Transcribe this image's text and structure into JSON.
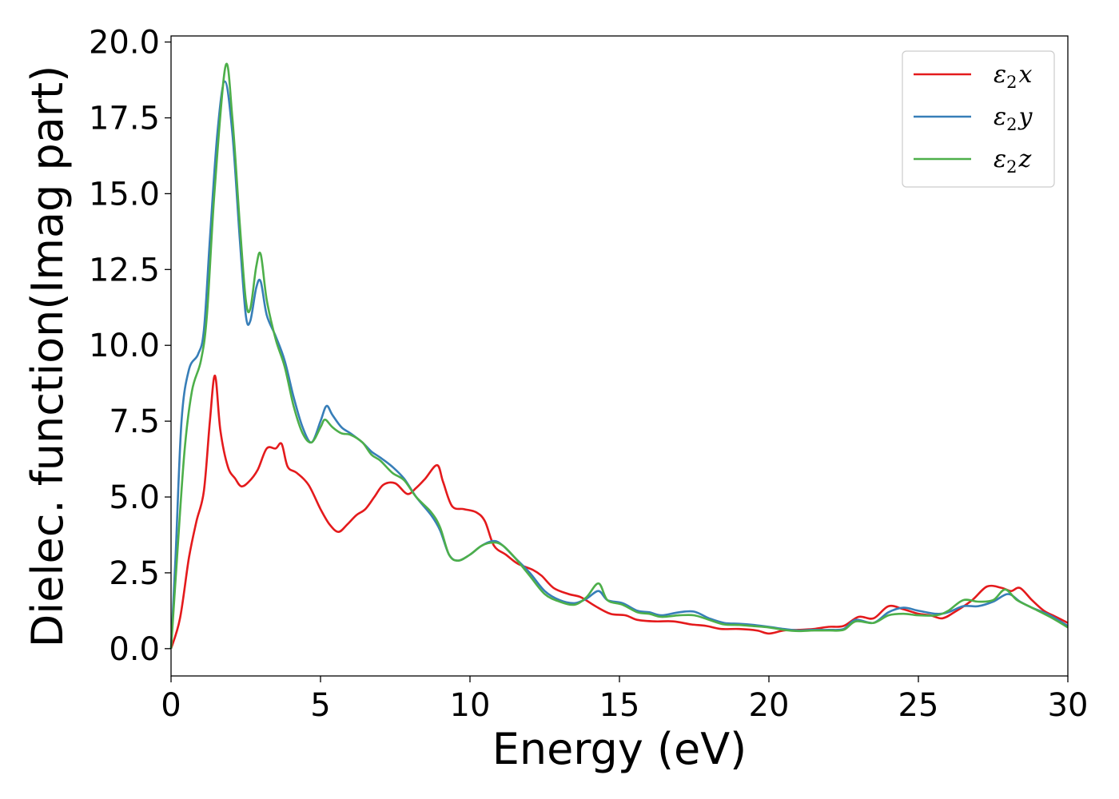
{
  "chart_data": {
    "type": "line",
    "title": "",
    "xlabel": "Energy (eV)",
    "ylabel": "Dielec. function(Imag part)",
    "xlim": [
      0,
      30
    ],
    "ylim": [
      -0.9,
      20.2
    ],
    "xticks": [
      0,
      5,
      10,
      15,
      20,
      25,
      30
    ],
    "yticks": [
      0.0,
      2.5,
      5.0,
      7.5,
      10.0,
      12.5,
      15.0,
      17.5,
      20.0
    ],
    "xtick_labels": [
      "0",
      "5",
      "10",
      "15",
      "20",
      "25",
      "30"
    ],
    "ytick_labels": [
      "0.0",
      "2.5",
      "5.0",
      "7.5",
      "10.0",
      "12.5",
      "15.0",
      "17.5",
      "20.0"
    ],
    "grid": false,
    "legend_position": "top-right",
    "series": [
      {
        "name": "ε₂x",
        "legend_base": "ε",
        "legend_sub": "2",
        "legend_var": "x",
        "color": "#e41a1c",
        "points": [
          [
            0,
            0
          ],
          [
            0.3,
            1.0
          ],
          [
            0.6,
            3.0
          ],
          [
            0.85,
            4.2
          ],
          [
            1.1,
            5.2
          ],
          [
            1.3,
            7.5
          ],
          [
            1.47,
            9.0
          ],
          [
            1.65,
            7.2
          ],
          [
            1.9,
            6.0
          ],
          [
            2.15,
            5.6
          ],
          [
            2.35,
            5.35
          ],
          [
            2.6,
            5.5
          ],
          [
            2.9,
            5.9
          ],
          [
            3.2,
            6.6
          ],
          [
            3.5,
            6.6
          ],
          [
            3.7,
            6.75
          ],
          [
            3.9,
            6.0
          ],
          [
            4.2,
            5.8
          ],
          [
            4.6,
            5.4
          ],
          [
            5.0,
            4.6
          ],
          [
            5.3,
            4.1
          ],
          [
            5.6,
            3.85
          ],
          [
            5.9,
            4.1
          ],
          [
            6.2,
            4.4
          ],
          [
            6.5,
            4.6
          ],
          [
            6.8,
            5.0
          ],
          [
            7.1,
            5.4
          ],
          [
            7.5,
            5.45
          ],
          [
            7.9,
            5.1
          ],
          [
            8.2,
            5.3
          ],
          [
            8.5,
            5.6
          ],
          [
            8.9,
            6.05
          ],
          [
            9.1,
            5.5
          ],
          [
            9.4,
            4.7
          ],
          [
            9.8,
            4.6
          ],
          [
            10.2,
            4.5
          ],
          [
            10.5,
            4.2
          ],
          [
            10.8,
            3.4
          ],
          [
            11.2,
            3.1
          ],
          [
            11.6,
            2.8
          ],
          [
            12.1,
            2.6
          ],
          [
            12.4,
            2.4
          ],
          [
            12.8,
            2.0
          ],
          [
            13.3,
            1.8
          ],
          [
            13.7,
            1.7
          ],
          [
            14.2,
            1.4
          ],
          [
            14.7,
            1.15
          ],
          [
            15.2,
            1.1
          ],
          [
            15.6,
            0.95
          ],
          [
            16.2,
            0.9
          ],
          [
            16.8,
            0.9
          ],
          [
            17.4,
            0.8
          ],
          [
            17.9,
            0.75
          ],
          [
            18.4,
            0.65
          ],
          [
            19.0,
            0.65
          ],
          [
            19.6,
            0.6
          ],
          [
            20.0,
            0.5
          ],
          [
            20.5,
            0.6
          ],
          [
            21.0,
            0.62
          ],
          [
            21.5,
            0.65
          ],
          [
            22.0,
            0.72
          ],
          [
            22.5,
            0.75
          ],
          [
            23.0,
            1.05
          ],
          [
            23.5,
            1.0
          ],
          [
            24.0,
            1.4
          ],
          [
            24.5,
            1.3
          ],
          [
            25.0,
            1.15
          ],
          [
            25.4,
            1.1
          ],
          [
            25.8,
            1.0
          ],
          [
            26.2,
            1.2
          ],
          [
            26.8,
            1.6
          ],
          [
            27.3,
            2.05
          ],
          [
            27.8,
            2.0
          ],
          [
            28.1,
            1.9
          ],
          [
            28.4,
            2.0
          ],
          [
            28.8,
            1.6
          ],
          [
            29.2,
            1.25
          ],
          [
            29.6,
            1.05
          ],
          [
            30,
            0.85
          ]
        ]
      },
      {
        "name": "ε₂y",
        "legend_base": "ε",
        "legend_sub": "2",
        "legend_var": "y",
        "color": "#377eb8",
        "points": [
          [
            0,
            0
          ],
          [
            0.15,
            3.0
          ],
          [
            0.35,
            7.5
          ],
          [
            0.6,
            9.2
          ],
          [
            0.9,
            9.7
          ],
          [
            1.1,
            10.5
          ],
          [
            1.3,
            13.5
          ],
          [
            1.55,
            17.0
          ],
          [
            1.8,
            18.7
          ],
          [
            2.05,
            17.0
          ],
          [
            2.3,
            13.5
          ],
          [
            2.5,
            11.0
          ],
          [
            2.65,
            10.8
          ],
          [
            2.85,
            11.9
          ],
          [
            3.0,
            12.1
          ],
          [
            3.2,
            11.0
          ],
          [
            3.5,
            10.3
          ],
          [
            3.8,
            9.5
          ],
          [
            4.1,
            8.3
          ],
          [
            4.4,
            7.3
          ],
          [
            4.7,
            6.8
          ],
          [
            5.0,
            7.5
          ],
          [
            5.2,
            8.0
          ],
          [
            5.4,
            7.7
          ],
          [
            5.7,
            7.3
          ],
          [
            6.0,
            7.1
          ],
          [
            6.4,
            6.8
          ],
          [
            6.7,
            6.5
          ],
          [
            7.0,
            6.3
          ],
          [
            7.4,
            6.0
          ],
          [
            7.8,
            5.6
          ],
          [
            8.2,
            5.0
          ],
          [
            8.7,
            4.4
          ],
          [
            9.0,
            3.9
          ],
          [
            9.3,
            3.1
          ],
          [
            9.6,
            2.9
          ],
          [
            10.0,
            3.1
          ],
          [
            10.4,
            3.4
          ],
          [
            10.8,
            3.55
          ],
          [
            11.1,
            3.4
          ],
          [
            11.5,
            3.0
          ],
          [
            12.0,
            2.5
          ],
          [
            12.5,
            1.9
          ],
          [
            13.0,
            1.6
          ],
          [
            13.5,
            1.5
          ],
          [
            13.9,
            1.65
          ],
          [
            14.3,
            1.9
          ],
          [
            14.6,
            1.6
          ],
          [
            15.1,
            1.5
          ],
          [
            15.6,
            1.25
          ],
          [
            16.0,
            1.2
          ],
          [
            16.4,
            1.1
          ],
          [
            17.0,
            1.2
          ],
          [
            17.5,
            1.22
          ],
          [
            18.0,
            1.0
          ],
          [
            18.5,
            0.85
          ],
          [
            19.0,
            0.82
          ],
          [
            19.5,
            0.78
          ],
          [
            20.0,
            0.72
          ],
          [
            20.5,
            0.65
          ],
          [
            21.0,
            0.6
          ],
          [
            21.5,
            0.62
          ],
          [
            22.0,
            0.62
          ],
          [
            22.5,
            0.65
          ],
          [
            22.9,
            0.95
          ],
          [
            23.5,
            0.85
          ],
          [
            24.0,
            1.2
          ],
          [
            24.5,
            1.35
          ],
          [
            25.0,
            1.25
          ],
          [
            25.6,
            1.15
          ],
          [
            26.0,
            1.2
          ],
          [
            26.5,
            1.4
          ],
          [
            27.0,
            1.4
          ],
          [
            27.5,
            1.55
          ],
          [
            28.0,
            1.8
          ],
          [
            28.4,
            1.55
          ],
          [
            28.8,
            1.35
          ],
          [
            29.4,
            1.1
          ],
          [
            30,
            0.75
          ]
        ]
      },
      {
        "name": "ε₂z",
        "legend_base": "ε",
        "legend_sub": "2",
        "legend_var": "z",
        "color": "#4daf4a",
        "points": [
          [
            0,
            0
          ],
          [
            0.2,
            3.0
          ],
          [
            0.45,
            6.5
          ],
          [
            0.7,
            8.5
          ],
          [
            1.0,
            9.5
          ],
          [
            1.2,
            11.0
          ],
          [
            1.45,
            15.0
          ],
          [
            1.82,
            19.2
          ],
          [
            2.05,
            17.5
          ],
          [
            2.3,
            14.0
          ],
          [
            2.5,
            11.5
          ],
          [
            2.65,
            11.2
          ],
          [
            2.85,
            12.6
          ],
          [
            3.0,
            13.0
          ],
          [
            3.2,
            11.5
          ],
          [
            3.5,
            10.2
          ],
          [
            3.8,
            9.3
          ],
          [
            4.1,
            8.0
          ],
          [
            4.4,
            7.1
          ],
          [
            4.7,
            6.8
          ],
          [
            5.0,
            7.3
          ],
          [
            5.15,
            7.55
          ],
          [
            5.4,
            7.3
          ],
          [
            5.7,
            7.1
          ],
          [
            6.0,
            7.05
          ],
          [
            6.4,
            6.8
          ],
          [
            6.7,
            6.4
          ],
          [
            7.0,
            6.2
          ],
          [
            7.4,
            5.8
          ],
          [
            7.8,
            5.55
          ],
          [
            8.2,
            5.0
          ],
          [
            8.7,
            4.5
          ],
          [
            9.0,
            4.0
          ],
          [
            9.3,
            3.1
          ],
          [
            9.6,
            2.9
          ],
          [
            10.0,
            3.1
          ],
          [
            10.4,
            3.4
          ],
          [
            10.8,
            3.5
          ],
          [
            11.1,
            3.4
          ],
          [
            11.5,
            3.0
          ],
          [
            12.0,
            2.4
          ],
          [
            12.5,
            1.8
          ],
          [
            13.0,
            1.55
          ],
          [
            13.5,
            1.45
          ],
          [
            13.9,
            1.7
          ],
          [
            14.3,
            2.15
          ],
          [
            14.6,
            1.6
          ],
          [
            15.1,
            1.45
          ],
          [
            15.6,
            1.2
          ],
          [
            16.0,
            1.15
          ],
          [
            16.4,
            1.05
          ],
          [
            17.0,
            1.1
          ],
          [
            17.5,
            1.1
          ],
          [
            18.0,
            0.95
          ],
          [
            18.5,
            0.8
          ],
          [
            19.0,
            0.78
          ],
          [
            19.5,
            0.74
          ],
          [
            20.0,
            0.7
          ],
          [
            20.5,
            0.62
          ],
          [
            21.0,
            0.58
          ],
          [
            21.5,
            0.6
          ],
          [
            22.0,
            0.6
          ],
          [
            22.5,
            0.62
          ],
          [
            22.9,
            0.9
          ],
          [
            23.5,
            0.85
          ],
          [
            24.0,
            1.1
          ],
          [
            24.5,
            1.15
          ],
          [
            25.0,
            1.1
          ],
          [
            25.6,
            1.1
          ],
          [
            26.0,
            1.25
          ],
          [
            26.5,
            1.6
          ],
          [
            27.0,
            1.55
          ],
          [
            27.5,
            1.6
          ],
          [
            27.9,
            1.95
          ],
          [
            28.3,
            1.6
          ],
          [
            28.8,
            1.35
          ],
          [
            29.4,
            1.05
          ],
          [
            30,
            0.7
          ]
        ]
      }
    ]
  }
}
